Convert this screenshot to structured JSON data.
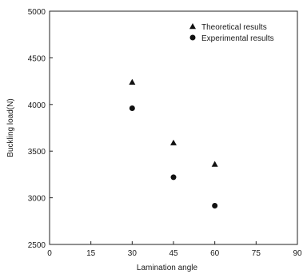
{
  "chart_data": {
    "type": "scatter",
    "title": "",
    "xlabel": "Lamination angle",
    "ylabel": "Buckling load(N)",
    "xlim": [
      0,
      90
    ],
    "ylim": [
      2500,
      5000
    ],
    "xticks": [
      0,
      15,
      30,
      45,
      60,
      75,
      90
    ],
    "yticks": [
      2500,
      3000,
      3500,
      4000,
      4500,
      5000
    ],
    "xtick_labels": [
      "0",
      "15",
      "30",
      "45",
      "60",
      "75",
      "90"
    ],
    "ytick_labels": [
      "2500",
      "3000",
      "3500",
      "4000",
      "4500",
      "5000"
    ],
    "grid": false,
    "legend_position": "top-right",
    "series": [
      {
        "name": "Theoretical results",
        "marker": "triangle",
        "color": "#111111",
        "x": [
          30,
          45,
          60
        ],
        "y": [
          4240,
          3590,
          3360
        ]
      },
      {
        "name": "Experimental results",
        "marker": "circle",
        "color": "#111111",
        "x": [
          30,
          45,
          60
        ],
        "y": [
          3960,
          3220,
          2915
        ]
      }
    ]
  }
}
